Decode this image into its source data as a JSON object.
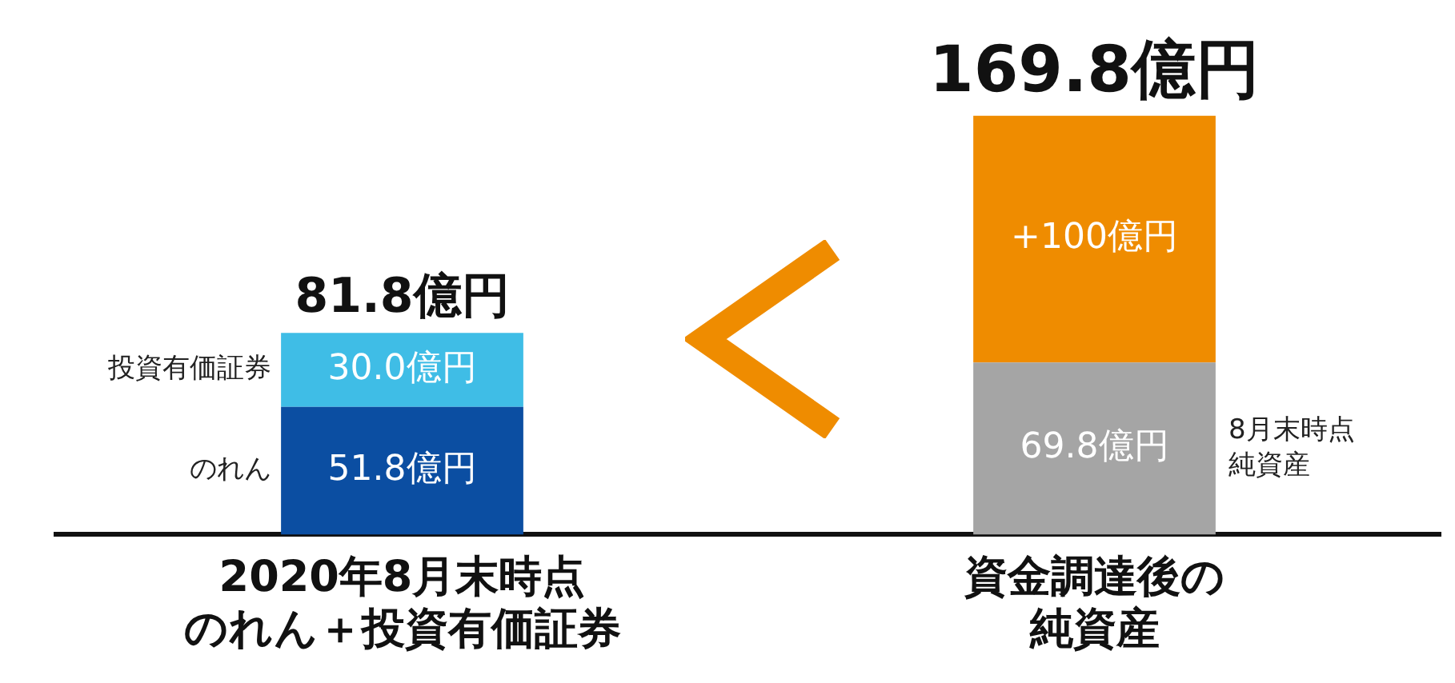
{
  "chart_data": {
    "type": "bar",
    "stacked": true,
    "categories": [
      "2020年8月末時点のれん＋投資有価証券",
      "資金調達後の純資産"
    ],
    "series": [
      {
        "name": "のれん",
        "color": "#0b4ea2",
        "values": [
          51.8,
          null
        ],
        "value_labels": [
          "51.8億円",
          null
        ]
      },
      {
        "name": "8月末時点純資産",
        "color": "#a5a5a5",
        "values": [
          null,
          69.8
        ],
        "value_labels": [
          null,
          "69.8億円"
        ]
      },
      {
        "name": "投資有価証券",
        "color": "#3fbde6",
        "values": [
          30.0,
          null
        ],
        "value_labels": [
          "30.0億円",
          null
        ]
      },
      {
        "color": "#ef8c00",
        "values": [
          null,
          100
        ],
        "value_labels": [
          null,
          "+100億円"
        ]
      }
    ],
    "totals": [
      "81.8億円",
      "169.8億円"
    ]
  }
}
